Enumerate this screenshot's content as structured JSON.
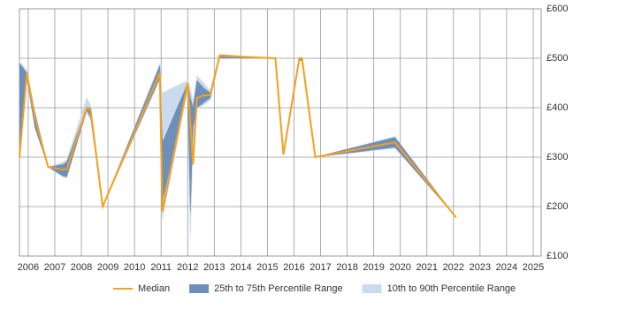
{
  "chart_data": {
    "type": "line",
    "x": [
      2005.67,
      2005.95,
      2006.25,
      2006.75,
      2007.3,
      2007.45,
      2008.2,
      2008.35,
      2008.8,
      2010.95,
      2011.05,
      2012.0,
      2012.1,
      2012.2,
      2012.35,
      2012.6,
      2012.85,
      2013.2,
      2015.3,
      2015.6,
      2016.2,
      2016.3,
      2016.8,
      2019.8,
      2022.1
    ],
    "series": [
      {
        "name": "Median",
        "color": "#f5a01a",
        "values": [
          300,
          470,
          380,
          280,
          275,
          275,
          400,
          395,
          200,
          470,
          190,
          450,
          370,
          285,
          420,
          425,
          425,
          505,
          500,
          305,
          500,
          500,
          300,
          330,
          178
        ]
      }
    ],
    "bands": [
      {
        "name": "10th to 90th Percentile Range",
        "color": "#c9dbec",
        "low": [
          295,
          455,
          360,
          280,
          260,
          258,
          390,
          375,
          200,
          455,
          175,
          435,
          135,
          330,
          400,
          405,
          415,
          500,
          500,
          305,
          495,
          495,
          300,
          318,
          178
        ],
        "high": [
          495,
          475,
          395,
          280,
          290,
          295,
          420,
          405,
          200,
          490,
          430,
          455,
          440,
          410,
          465,
          450,
          435,
          508,
          500,
          305,
          500,
          500,
          300,
          342,
          178
        ]
      },
      {
        "name": "25th to 75th Percentile Range",
        "color": "#6f8fbb",
        "low": [
          295,
          460,
          360,
          280,
          262,
          260,
          395,
          380,
          200,
          460,
          210,
          440,
          190,
          360,
          400,
          410,
          420,
          500,
          500,
          305,
          495,
          495,
          300,
          320,
          178
        ],
        "high": [
          490,
          470,
          390,
          280,
          285,
          290,
          400,
          400,
          200,
          485,
          330,
          450,
          420,
          400,
          455,
          440,
          430,
          507,
          500,
          305,
          500,
          500,
          300,
          340,
          178
        ]
      }
    ],
    "xlim": [
      2005.67,
      2025.3
    ],
    "xticks": [
      2006,
      2007,
      2008,
      2009,
      2010,
      2011,
      2012,
      2013,
      2014,
      2015,
      2016,
      2017,
      2018,
      2019,
      2020,
      2021,
      2022,
      2023,
      2024,
      2025
    ],
    "ylim": [
      100,
      600
    ],
    "yticks": [
      {
        "value": 100,
        "label": "£100"
      },
      {
        "value": 200,
        "label": "£200"
      },
      {
        "value": 300,
        "label": "£300"
      },
      {
        "value": 400,
        "label": "£400"
      },
      {
        "value": 500,
        "label": "£500"
      },
      {
        "value": 600,
        "label": "£600"
      }
    ],
    "grid": true
  }
}
